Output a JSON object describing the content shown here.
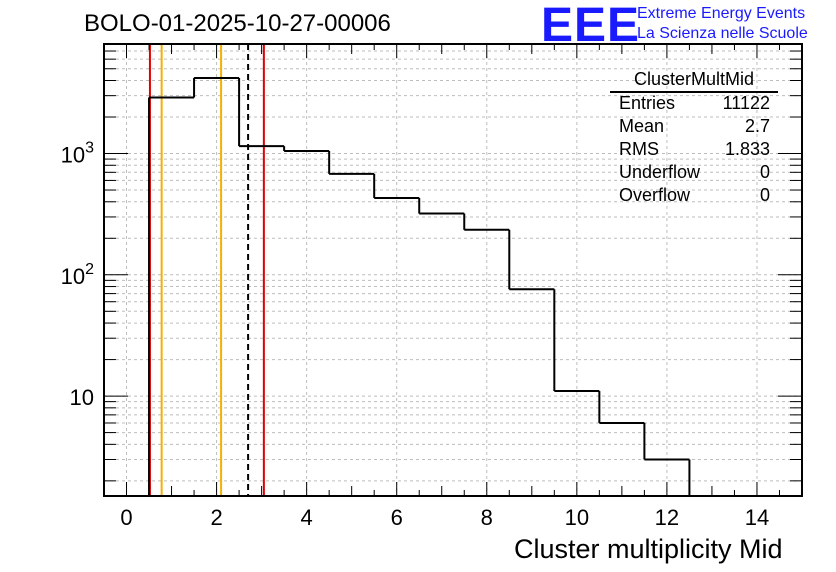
{
  "title": "BOLO-01-2025-10-27-00006",
  "logo": {
    "big": "EEE",
    "line1": "Extreme Energy Events",
    "line2": "La Scienza nelle Scuole",
    "color": "#1a1aff"
  },
  "stats": {
    "title": "ClusterMultMid",
    "rows": [
      {
        "key": "Entries",
        "value": "11122"
      },
      {
        "key": "Mean",
        "value": "2.7"
      },
      {
        "key": "RMS",
        "value": "1.833"
      },
      {
        "key": "Underflow",
        "value": "0"
      },
      {
        "key": "Overflow",
        "value": "0"
      }
    ]
  },
  "chart_data": {
    "type": "histogram",
    "xlabel": "Cluster multiplicity Mid",
    "ylabel": "",
    "xlim": [
      -0.5,
      15.0
    ],
    "ylim": [
      1.5,
      8000
    ],
    "ylog": true,
    "grid": true,
    "x_ticks": [
      "0",
      "2",
      "4",
      "6",
      "8",
      "10",
      "12",
      "14"
    ],
    "y_ticks": [
      {
        "value": 10,
        "base": "10",
        "exp": ""
      },
      {
        "value": 100,
        "base": "10",
        "exp": "2"
      },
      {
        "value": 1000,
        "base": "10",
        "exp": "3"
      }
    ],
    "bins": [
      {
        "lo": 0.5,
        "hi": 1.5,
        "count": 2900
      },
      {
        "lo": 1.5,
        "hi": 2.5,
        "count": 4200
      },
      {
        "lo": 2.5,
        "hi": 3.5,
        "count": 1150
      },
      {
        "lo": 3.5,
        "hi": 4.5,
        "count": 1050
      },
      {
        "lo": 4.5,
        "hi": 5.5,
        "count": 680
      },
      {
        "lo": 5.5,
        "hi": 6.5,
        "count": 430
      },
      {
        "lo": 6.5,
        "hi": 7.5,
        "count": 320
      },
      {
        "lo": 7.5,
        "hi": 8.5,
        "count": 235
      },
      {
        "lo": 8.5,
        "hi": 9.5,
        "count": 76
      },
      {
        "lo": 9.5,
        "hi": 10.5,
        "count": 11
      },
      {
        "lo": 10.5,
        "hi": 11.5,
        "count": 6
      },
      {
        "lo": 11.5,
        "hi": 12.5,
        "count": 3
      },
      {
        "lo": 12.5,
        "hi": 13.5,
        "count": 0
      }
    ],
    "markers": [
      {
        "name": "mean-line",
        "x": 2.7,
        "color": "#000000",
        "style": "dashed"
      },
      {
        "name": "red-line-low",
        "x": 0.52,
        "color": "#e00000",
        "style": "solid"
      },
      {
        "name": "red-line-high",
        "x": 3.05,
        "color": "#e00000",
        "style": "solid"
      },
      {
        "name": "orange-line-low",
        "x": 0.78,
        "color": "#f5b000",
        "style": "solid"
      },
      {
        "name": "orange-line-high",
        "x": 2.1,
        "color": "#f5b000",
        "style": "solid"
      }
    ],
    "line_color": "#000000"
  }
}
